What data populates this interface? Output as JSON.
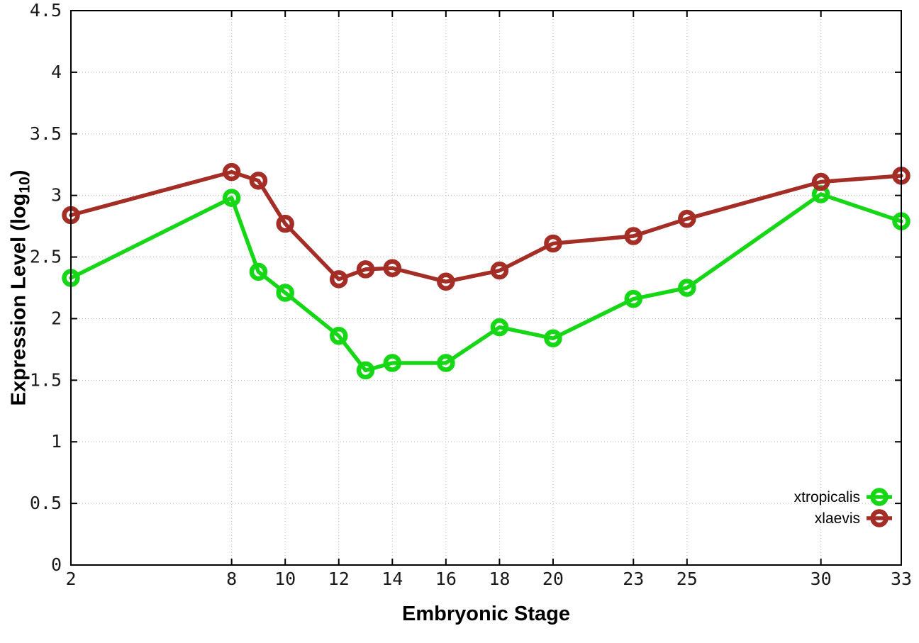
{
  "chart_data": {
    "type": "line",
    "title": "",
    "xlabel": "Embryonic Stage",
    "ylabel": "Expression Level (log10)",
    "ylabel_parts": {
      "main": "Expression Level (log",
      "sub": "10",
      "close": ")"
    },
    "x": [
      2,
      8,
      9,
      10,
      12,
      13,
      14,
      16,
      18,
      20,
      23,
      25,
      30,
      33
    ],
    "series": [
      {
        "name": "xtropicalis",
        "color": "#16d716",
        "values": [
          2.33,
          2.98,
          2.38,
          2.21,
          1.86,
          1.58,
          1.64,
          1.64,
          1.93,
          1.84,
          2.16,
          2.25,
          3.01,
          2.79
        ]
      },
      {
        "name": "xlaevis",
        "color": "#a42d26",
        "values": [
          2.84,
          3.19,
          3.12,
          2.77,
          2.32,
          2.4,
          2.41,
          2.3,
          2.39,
          2.61,
          2.67,
          2.81,
          3.11,
          3.16
        ]
      }
    ],
    "xlim": [
      2,
      33
    ],
    "ylim": [
      0,
      4.5
    ],
    "x_ticks": {
      "values": [
        2,
        8,
        10,
        12,
        14,
        16,
        18,
        20,
        23,
        25,
        30,
        33
      ],
      "labels": [
        "2",
        "8",
        "10",
        "12",
        "14",
        "16",
        "18",
        "20",
        "23",
        "25",
        "30",
        "33"
      ]
    },
    "y_ticks": {
      "values": [
        0,
        0.5,
        1,
        1.5,
        2,
        2.5,
        3,
        3.5,
        4,
        4.5
      ],
      "labels": [
        "0",
        "0.5",
        "1",
        "1.5",
        "2",
        "2.5",
        "3",
        "3.5",
        "4",
        "4.5"
      ]
    },
    "grid": "dotted",
    "marker": "open-circle",
    "legend": {
      "position": "bottom-right-inside",
      "entries": [
        "xtropicalis",
        "xlaevis"
      ]
    },
    "colors": {
      "background": "#ffffff",
      "axis": "#000000",
      "grid": "#b8b8b8",
      "tick_label": "#1a1a1a"
    }
  }
}
